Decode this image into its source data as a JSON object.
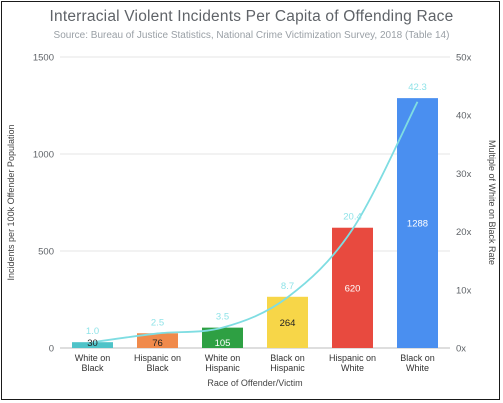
{
  "chart_data": {
    "type": "bar",
    "title": "Interracial Violent Incidents Per Capita of Offending Race",
    "subtitle": "Source: Bureau of Justice Statistics, National Crime Victimization Survey, 2018 (Table 14)",
    "xlabel": "Race of Offender/Victim",
    "ylabel": "Incidents per 100k Offender Population",
    "y2label": "Multiple of White on Black Rate",
    "categories": [
      [
        "White on",
        "Black"
      ],
      [
        "Hispanic on",
        "Black"
      ],
      [
        "White on",
        "Hispanic"
      ],
      [
        "Black on",
        "Hispanic"
      ],
      [
        "Hispanic on",
        "White"
      ],
      [
        "Black on",
        "White"
      ]
    ],
    "values": [
      30,
      76,
      105,
      264,
      620,
      1288
    ],
    "value_labels": [
      "30",
      "76",
      "105",
      "264",
      "620",
      "1288"
    ],
    "bar_colors": [
      "#4fc3c8",
      "#f08a4b",
      "#2ea043",
      "#f7d648",
      "#e84a3f",
      "#4a8ff0"
    ],
    "label_colors": [
      "#222222",
      "#222222",
      "#ffffff",
      "#222222",
      "#ffffff",
      "#ffffff"
    ],
    "ylim": [
      0,
      1500
    ],
    "yticks": [
      0,
      500,
      1000,
      1500
    ],
    "ytick_labels": [
      "0",
      "500",
      "1000",
      "1500"
    ],
    "y2lim": [
      0,
      50
    ],
    "y2ticks": [
      0,
      10,
      20,
      30,
      40,
      50
    ],
    "y2tick_labels": [
      "0x",
      "10x",
      "20x",
      "30x",
      "40x",
      "50x"
    ],
    "multiples": [
      1.0,
      2.5,
      3.5,
      8.7,
      20.4,
      42.3
    ],
    "multiple_labels": [
      "1.0",
      "2.5",
      "3.5",
      "8.7",
      "20.4",
      "42.3"
    ],
    "line_color": "#7fdde2",
    "grid": true,
    "grid_color": "#e6e6e6"
  }
}
